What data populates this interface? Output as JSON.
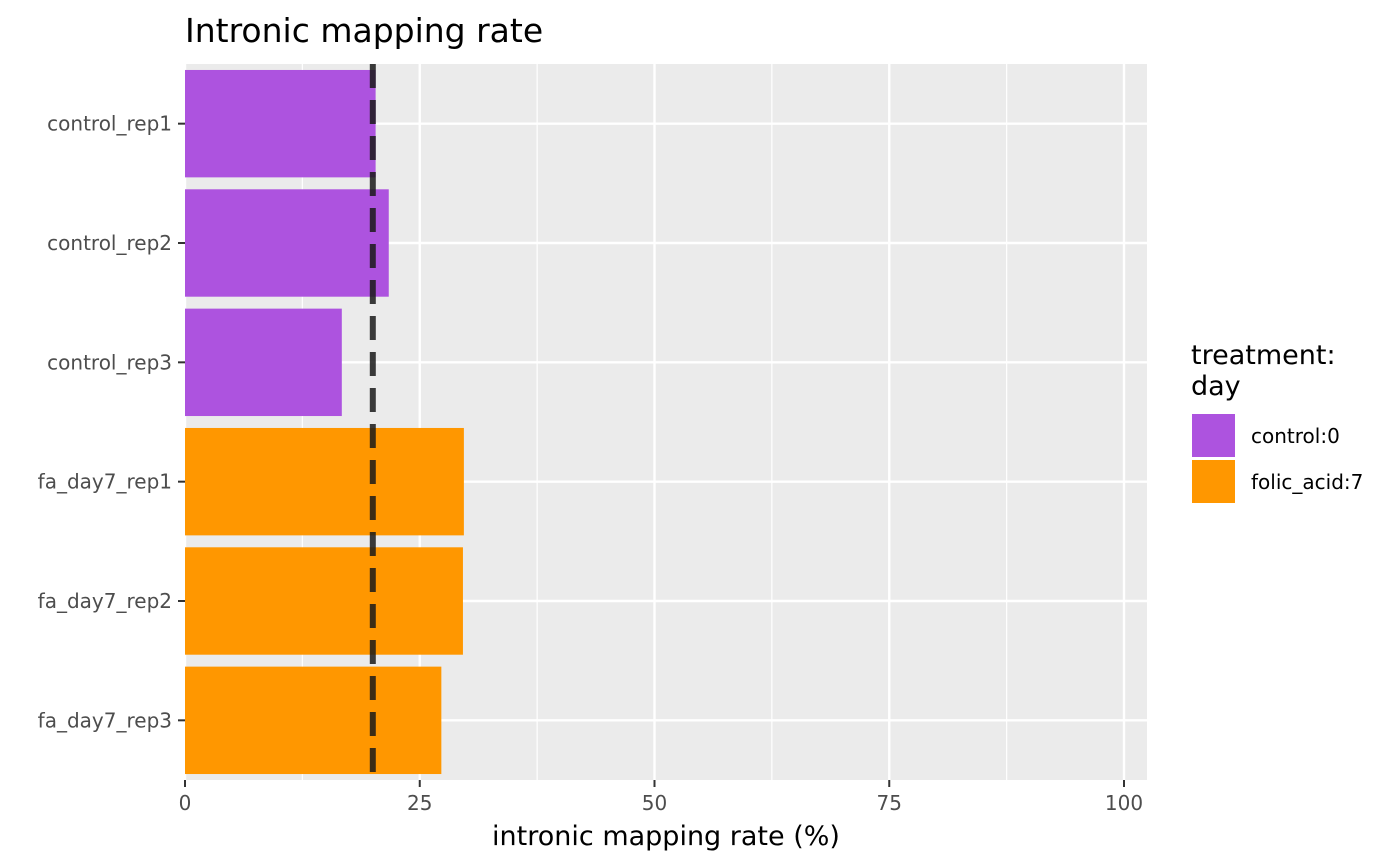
{
  "chart_data": {
    "type": "bar",
    "orientation": "horizontal",
    "title": "Intronic mapping rate",
    "xlabel": "intronic mapping rate (%)",
    "ylabel": "",
    "xlim": [
      0,
      100
    ],
    "x_ticks": [
      0,
      25,
      50,
      75,
      100
    ],
    "grid": true,
    "categories": [
      "control_rep1",
      "control_rep2",
      "control_rep3",
      "fa_day7_rep1",
      "fa_day7_rep2",
      "fa_day7_rep3"
    ],
    "values": [
      20.3,
      21.7,
      16.7,
      29.7,
      29.6,
      27.3
    ],
    "groups": [
      "control:0",
      "control:0",
      "control:0",
      "folic_acid:7",
      "folic_acid:7",
      "folic_acid:7"
    ],
    "reference_line": {
      "value": 20,
      "style": "dashed"
    },
    "legend": {
      "title_lines": [
        "treatment:",
        "day"
      ],
      "position": "right",
      "entries": [
        {
          "label": "control:0",
          "color": "#ad53df"
        },
        {
          "label": "folic_acid:7",
          "color": "#ff9700"
        }
      ]
    },
    "colors": {
      "panel_background": "#ebebeb",
      "grid_line": "#ffffff",
      "reference_line": "#1a1a1a"
    }
  }
}
